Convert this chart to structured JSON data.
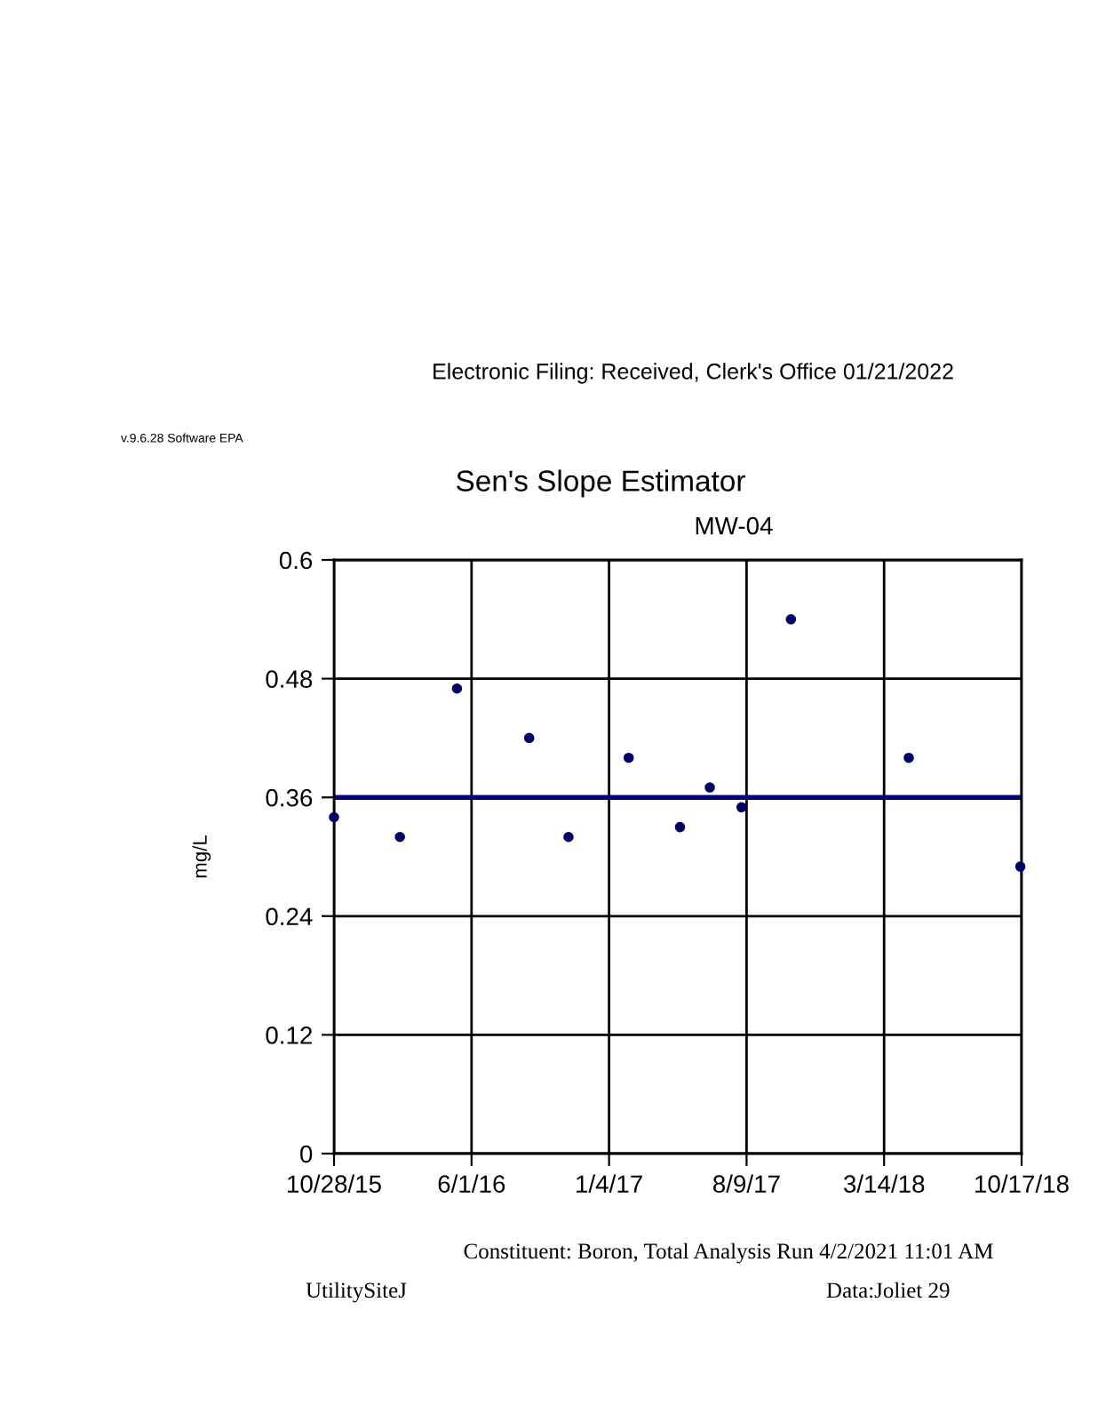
{
  "chart_data": {
    "type": "scatter",
    "title": "Sen's Slope Estimator",
    "subtitle": "MW-04",
    "ylabel": "mg/L",
    "annotations": [
      "Electronic Filing: Received, Clerk's Office 01/21/2022",
      "v.9.6.28 Software EPA",
      "Constituent: Boron, Total Analysis Run 4/2/2021 11:01 AM",
      "UtilitySiteJ",
      "Data:Joliet 29"
    ],
    "series": [
      {
        "color": "#000066",
        "marker": "circle",
        "x": [
          "2015-10-28",
          "2016-02-09",
          "2016-05-09",
          "2016-08-31",
          "2016-11-01",
          "2017-02-04",
          "2017-04-26",
          "2017-06-12",
          "2017-08-01",
          "2017-10-18",
          "2018-04-22",
          "2018-10-15"
        ],
        "values": [
          0.34,
          0.32,
          0.47,
          0.42,
          0.32,
          0.4,
          0.33,
          0.37,
          0.35,
          0.54,
          0.4,
          0.29
        ]
      },
      {
        "type": "line",
        "color": "#000080",
        "marker": "none",
        "x": [
          "2015-10-28",
          "2018-10-17"
        ],
        "values": [
          0.36,
          0.36
        ]
      }
    ],
    "xlim": [
      "2015-10-28",
      "2018-10-17"
    ],
    "xticks": [
      {
        "value": "2015-10-28",
        "label": "10/28/15"
      },
      {
        "value": "2016-06-01",
        "label": "6/1/16"
      },
      {
        "value": "2017-01-04",
        "label": "1/4/17"
      },
      {
        "value": "2017-08-09",
        "label": "8/9/17"
      },
      {
        "value": "2018-03-14",
        "label": "3/14/18"
      },
      {
        "value": "2018-10-17",
        "label": "10/17/18"
      }
    ],
    "ylim": [
      0,
      0.6
    ],
    "yticks": [
      0,
      0.12,
      0.24,
      0.36,
      0.48,
      0.6
    ],
    "grid": true
  }
}
